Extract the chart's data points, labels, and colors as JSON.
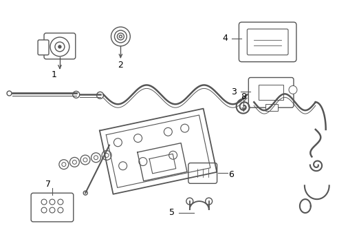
{
  "bg_color": "#ffffff",
  "line_color": "#555555",
  "fig_width": 4.9,
  "fig_height": 3.6,
  "dpi": 100
}
